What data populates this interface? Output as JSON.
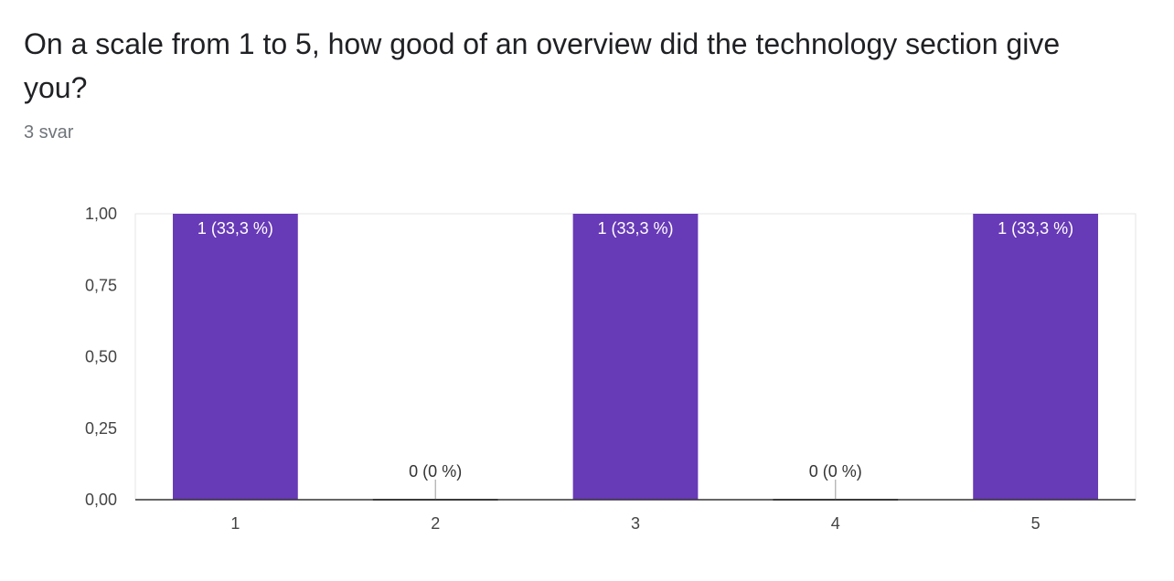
{
  "question": {
    "title": "On a scale from 1 to 5, how good of an overview did the technology section give you?",
    "response_count": "3 svar"
  },
  "colors": {
    "bar": "#673ab7",
    "bar_label": "#ffffff",
    "outside_label": "#333333",
    "axis": "#333333",
    "grid": "#e6e6e6"
  },
  "chart_data": {
    "type": "bar",
    "categories": [
      "1",
      "2",
      "3",
      "4",
      "5"
    ],
    "values": [
      1,
      0,
      1,
      0,
      1
    ],
    "data_labels": [
      "1 (33,3 %)",
      "0 (0 %)",
      "1 (33,3 %)",
      "0 (0 %)",
      "1 (33,3 %)"
    ],
    "y_ticks": [
      0,
      0.25,
      0.5,
      0.75,
      1
    ],
    "y_tick_labels": [
      "0,00",
      "0,25",
      "0,50",
      "0,75",
      "1,00"
    ],
    "ylim": [
      0,
      1
    ],
    "title": "",
    "xlabel": "",
    "ylabel": "",
    "grid": false
  }
}
